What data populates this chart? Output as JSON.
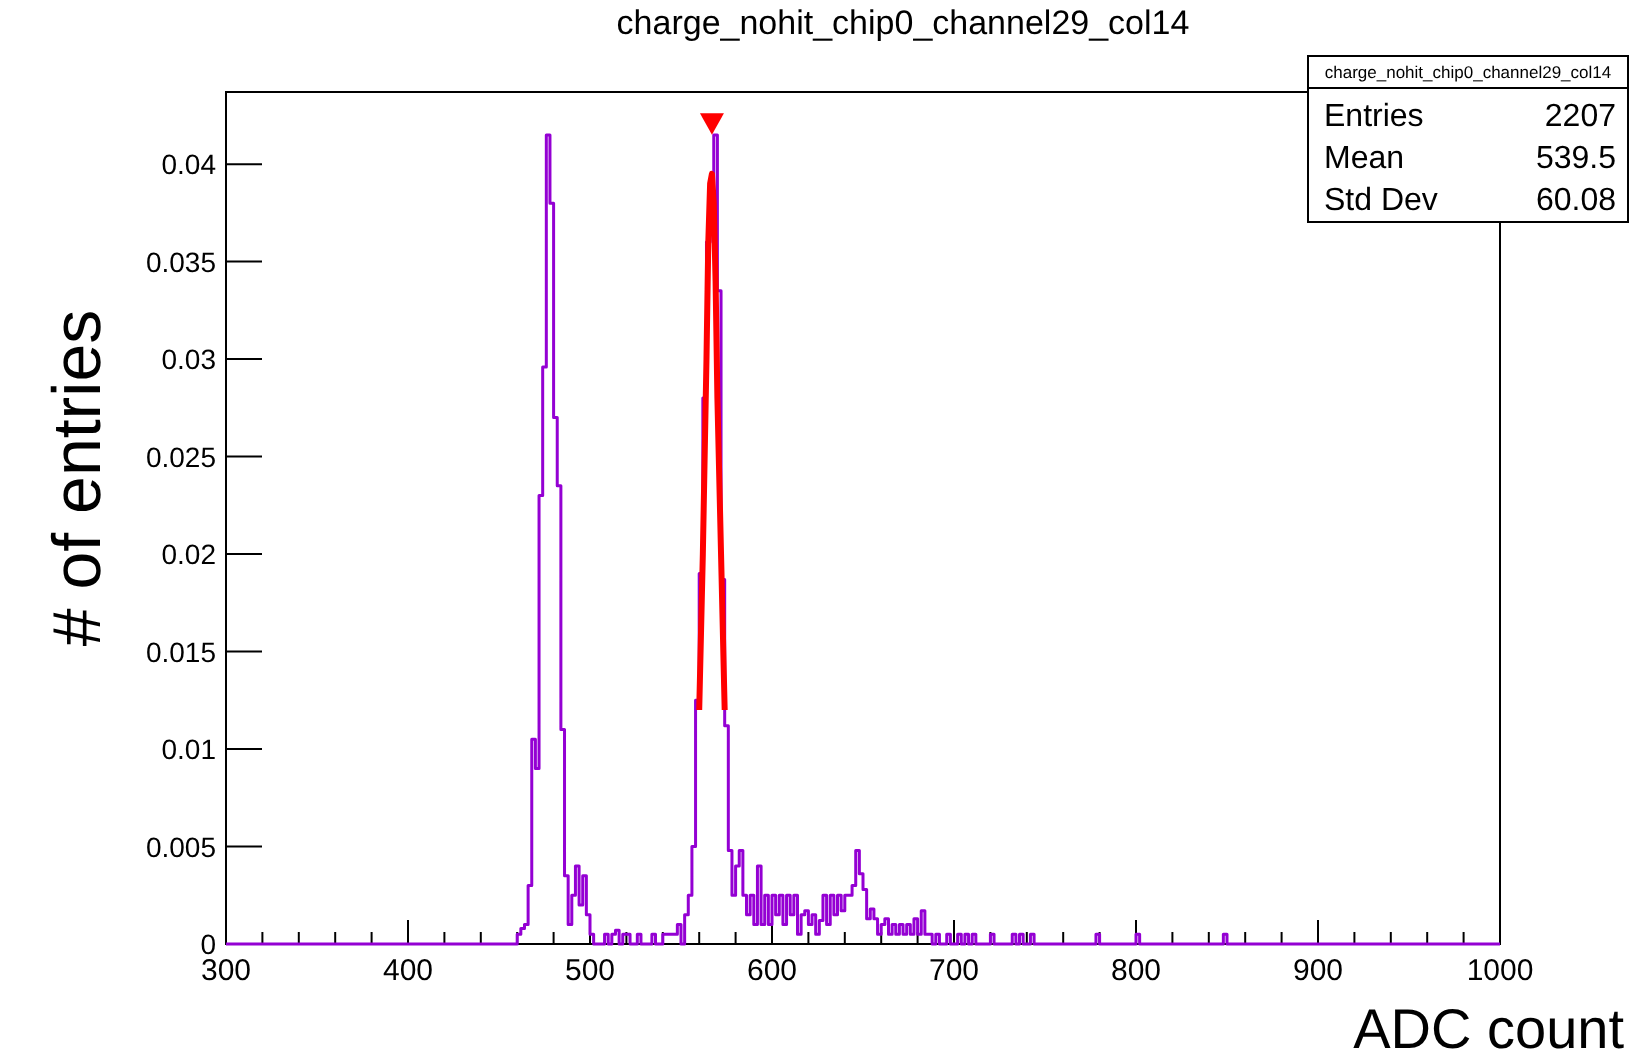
{
  "chart_data": {
    "type": "histogram",
    "title": "charge_nohit_chip0_channel29_col14",
    "xlabel": "ADC count",
    "ylabel": "# of entries",
    "bins": [
      300,
      460,
      462,
      464,
      466,
      468,
      470,
      472,
      474,
      476,
      478,
      480,
      482,
      484,
      486,
      488,
      490,
      492,
      494,
      496,
      498,
      500,
      502,
      504,
      506,
      508,
      510,
      512,
      514,
      516,
      518,
      520,
      522,
      524,
      526,
      528,
      530,
      532,
      534,
      536,
      538,
      540,
      542,
      544,
      546,
      548,
      550,
      552,
      554,
      556,
      558,
      560,
      562,
      564,
      566,
      568,
      570,
      572,
      574,
      576,
      578,
      580,
      582,
      584,
      586,
      588,
      590,
      592,
      594,
      596,
      598,
      600,
      602,
      604,
      606,
      608,
      610,
      612,
      614,
      616,
      618,
      620,
      622,
      624,
      626,
      628,
      630,
      632,
      634,
      636,
      638,
      640,
      642,
      644,
      646,
      648,
      650,
      652,
      654,
      656,
      658,
      660,
      662,
      664,
      666,
      668,
      670,
      672,
      674,
      676,
      678,
      680,
      682,
      684,
      686,
      688,
      690,
      692,
      694,
      696,
      698,
      700,
      702,
      704,
      706,
      708,
      710,
      712,
      714,
      716,
      718,
      720,
      722,
      724,
      726,
      728,
      730,
      732,
      734,
      736,
      738,
      740,
      742,
      744,
      746,
      748,
      750,
      752,
      754,
      756,
      758,
      760,
      762,
      764,
      766,
      768,
      770,
      772,
      774,
      776,
      778,
      780,
      782,
      784,
      786,
      788,
      790,
      792,
      794,
      796,
      798,
      800,
      802,
      804,
      806,
      808,
      810,
      812,
      814,
      816,
      818,
      820,
      822,
      824,
      826,
      828,
      830,
      832,
      834,
      836,
      838,
      840,
      842,
      844,
      846,
      848,
      850,
      852,
      854,
      856,
      858,
      860,
      1000
    ],
    "values": [
      0,
      0.0005,
      0.0008,
      0.001,
      0.003,
      0.0105,
      0.009,
      0.023,
      0.0296,
      0.0415,
      0.038,
      0.027,
      0.0235,
      0.011,
      0.0035,
      0.001,
      0.0025,
      0.004,
      0.002,
      0.0035,
      0.0015,
      0.0005,
      0,
      0,
      0,
      0.0005,
      0,
      0.0005,
      0.0007,
      0,
      0.0005,
      0.0005,
      0,
      0,
      0.0005,
      0,
      0,
      0,
      0.0005,
      0,
      0,
      0.0005,
      0.0005,
      0.0005,
      0.0005,
      0.001,
      0,
      0.0015,
      0.0025,
      0.005,
      0.0125,
      0.019,
      0.028,
      0.036,
      0.0375,
      0.0415,
      0.0335,
      0.0187,
      0.0112,
      0.0048,
      0.0025,
      0.004,
      0.0048,
      0.0025,
      0.0015,
      0.0025,
      0.001,
      0.004,
      0.001,
      0.0025,
      0.001,
      0.0025,
      0.0015,
      0.0025,
      0.001,
      0.0025,
      0.0015,
      0.0025,
      0.0005,
      0.0015,
      0.0017,
      0.001,
      0.0015,
      0.0005,
      0.0012,
      0.0025,
      0.001,
      0.0025,
      0.0015,
      0.0025,
      0.0017,
      0.0025,
      0.0025,
      0.003,
      0.0048,
      0.0036,
      0.0028,
      0.0013,
      0.0018,
      0.0013,
      0.0005,
      0.001,
      0.0013,
      0.0005,
      0.001,
      0.0005,
      0.001,
      0.0005,
      0.001,
      0.0005,
      0.0013,
      0.0005,
      0.0017,
      0.0005,
      0.0005,
      0,
      0.0005,
      0,
      0,
      0.0005,
      0,
      0,
      0.0005,
      0,
      0.0005,
      0,
      0.0005,
      0,
      0,
      0,
      0,
      0.0005,
      0,
      0,
      0,
      0,
      0,
      0.0005,
      0,
      0.0005,
      0,
      0,
      0.0005,
      0,
      0,
      0,
      0,
      0,
      0,
      0,
      0,
      0,
      0,
      0,
      0,
      0,
      0,
      0,
      0,
      0,
      0.0005,
      0,
      0,
      0,
      0,
      0,
      0,
      0,
      0,
      0,
      0,
      0.0005,
      0,
      0,
      0,
      0,
      0,
      0,
      0,
      0,
      0,
      0,
      0,
      0,
      0,
      0,
      0,
      0,
      0,
      0,
      0,
      0,
      0,
      0,
      0,
      0.0005,
      0,
      0,
      0,
      0,
      0,
      0
    ],
    "color": "#9400d3",
    "series": [
      {
        "type": "line",
        "color": "#ff0000",
        "x": [
          560,
          562,
          564,
          565,
          566,
          567,
          568,
          569,
          570,
          572,
          574
        ],
        "values": [
          0.012,
          0.02,
          0.03,
          0.036,
          0.039,
          0.0395,
          0.038,
          0.034,
          0.028,
          0.02,
          0.012
        ]
      },
      {
        "type": "scatter",
        "color": "#ff0000",
        "marker": "triangle",
        "x": [
          567
        ],
        "values": [
          0.042
        ]
      }
    ],
    "xlim": [
      300,
      1000
    ],
    "ylim": [
      0,
      0.0437
    ],
    "xticks": [
      300,
      {
        "value": 320,
        "label": null
      },
      {
        "value": 340,
        "label": null
      },
      {
        "value": 360,
        "label": null
      },
      {
        "value": 380,
        "label": null
      },
      400,
      {
        "value": 420,
        "label": null
      },
      {
        "value": 440,
        "label": null
      },
      {
        "value": 460,
        "label": null
      },
      {
        "value": 480,
        "label": null
      },
      500,
      {
        "value": 520,
        "label": null
      },
      {
        "value": 540,
        "label": null
      },
      {
        "value": 560,
        "label": null
      },
      {
        "value": 580,
        "label": null
      },
      600,
      {
        "value": 620,
        "label": null
      },
      {
        "value": 640,
        "label": null
      },
      {
        "value": 660,
        "label": null
      },
      {
        "value": 680,
        "label": null
      },
      700,
      {
        "value": 720,
        "label": null
      },
      {
        "value": 740,
        "label": null
      },
      {
        "value": 760,
        "label": null
      },
      {
        "value": 780,
        "label": null
      },
      800,
      {
        "value": 820,
        "label": null
      },
      {
        "value": 840,
        "label": null
      },
      {
        "value": 860,
        "label": null
      },
      {
        "value": 880,
        "label": null
      },
      900,
      {
        "value": 920,
        "label": null
      },
      {
        "value": 940,
        "label": null
      },
      {
        "value": 960,
        "label": null
      },
      {
        "value": 980,
        "label": null
      },
      1000
    ],
    "yticks": [
      0,
      0.005,
      0.01,
      0.015,
      0.02,
      0.025,
      0.03,
      0.035,
      0.04
    ],
    "grid": false,
    "annotations": [
      "charge_nohit_chip0_channel29_col14",
      "Entries",
      "2207",
      "Mean",
      "539.5",
      "Std Dev",
      "60.08"
    ]
  }
}
